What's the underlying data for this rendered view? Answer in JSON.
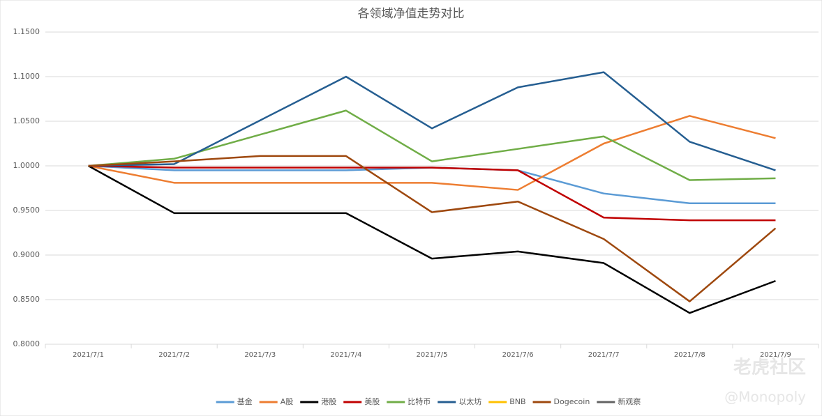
{
  "chart_data": {
    "type": "line",
    "title": "各领域净值走势对比",
    "categories": [
      "2021/7/1",
      "2021/7/2",
      "2021/7/3",
      "2021/7/4",
      "2021/7/5",
      "2021/7/6",
      "2021/7/7",
      "2021/7/8",
      "2021/7/9"
    ],
    "series": [
      {
        "name": "基金",
        "color": "#5b9bd5",
        "values": [
          1.0,
          0.995,
          0.995,
          0.995,
          0.998,
          0.995,
          0.969,
          0.958,
          0.958
        ]
      },
      {
        "name": "A股",
        "color": "#ed7d31",
        "values": [
          1.0,
          0.981,
          0.981,
          0.981,
          0.981,
          0.973,
          1.025,
          1.056,
          1.031
        ]
      },
      {
        "name": "港股",
        "color": "#000000",
        "values": [
          1.0,
          0.947,
          0.947,
          0.947,
          0.896,
          0.904,
          0.891,
          0.835,
          0.871
        ]
      },
      {
        "name": "美股",
        "color": "#c00000",
        "values": [
          1.0,
          0.998,
          0.998,
          0.998,
          0.998,
          0.995,
          0.942,
          0.939,
          0.939
        ]
      },
      {
        "name": "比特币",
        "color": "#70ad47",
        "values": [
          1.0,
          1.008,
          1.035,
          1.062,
          1.005,
          1.019,
          1.033,
          0.984,
          0.986
        ]
      },
      {
        "name": "以太坊",
        "color": "#255e91",
        "values": [
          1.0,
          1.002,
          1.051,
          1.1,
          1.042,
          1.088,
          1.105,
          1.027,
          0.995
        ]
      },
      {
        "name": "BNB",
        "color": "#ffc000",
        "values": [
          null,
          null,
          null,
          null,
          null,
          null,
          null,
          null,
          null
        ]
      },
      {
        "name": "Dogecoin",
        "color": "#9e480e",
        "values": [
          1.0,
          1.005,
          1.011,
          1.011,
          0.948,
          0.96,
          0.918,
          0.848,
          0.93
        ]
      },
      {
        "name": "新观察",
        "color": "#636363",
        "values": [
          null,
          null,
          null,
          null,
          null,
          null,
          null,
          null,
          null
        ]
      }
    ],
    "ylim": [
      0.8,
      1.15
    ],
    "yticks": [
      {
        "value": 0.8,
        "label": "0.8000"
      },
      {
        "value": 0.85,
        "label": "0.8500"
      },
      {
        "value": 0.9,
        "label": "0.9000"
      },
      {
        "value": 0.95,
        "label": "0.9500"
      },
      {
        "value": 1.0,
        "label": "1.0000"
      },
      {
        "value": 1.05,
        "label": "1.0500"
      },
      {
        "value": 1.1,
        "label": "1.1000"
      },
      {
        "value": 1.15,
        "label": "1.1500"
      }
    ],
    "grid": true,
    "legend": "bottom",
    "watermark": [
      "老虎社区",
      "@Monopoly"
    ]
  }
}
